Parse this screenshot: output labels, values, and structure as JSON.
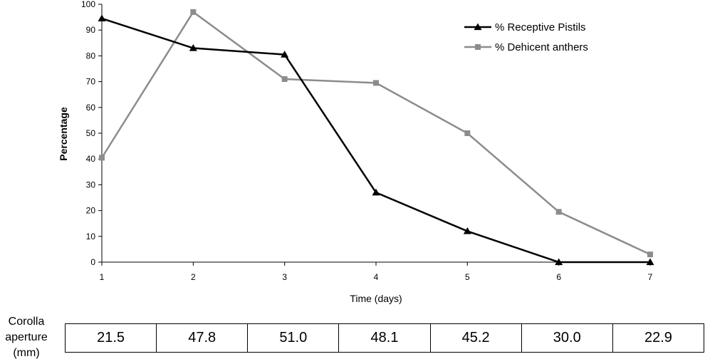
{
  "chart_data": {
    "type": "line",
    "x": [
      1,
      2,
      3,
      4,
      5,
      6,
      7
    ],
    "xlabel": "Time (days)",
    "ylabel": "Percentage",
    "ylim": [
      0,
      100
    ],
    "yticks": [
      0,
      10,
      20,
      30,
      40,
      50,
      60,
      70,
      80,
      90,
      100
    ],
    "legend_position": "top-right",
    "series": [
      {
        "name": "% Receptive Pistils",
        "color": "#000000",
        "marker": "triangle",
        "values": [
          94.5,
          83,
          80.5,
          27,
          12,
          0,
          0
        ]
      },
      {
        "name": "% Dehicent anthers",
        "color": "#8c8c8c",
        "marker": "square",
        "values": [
          40.5,
          97,
          71,
          69.5,
          50,
          19.5,
          3
        ]
      }
    ]
  },
  "aperture": {
    "label_lines": [
      "Corolla",
      "aperture",
      "(mm)"
    ],
    "values": [
      "21.5",
      "47.8",
      "51.0",
      "48.1",
      "45.2",
      "30.0",
      "22.9"
    ]
  }
}
